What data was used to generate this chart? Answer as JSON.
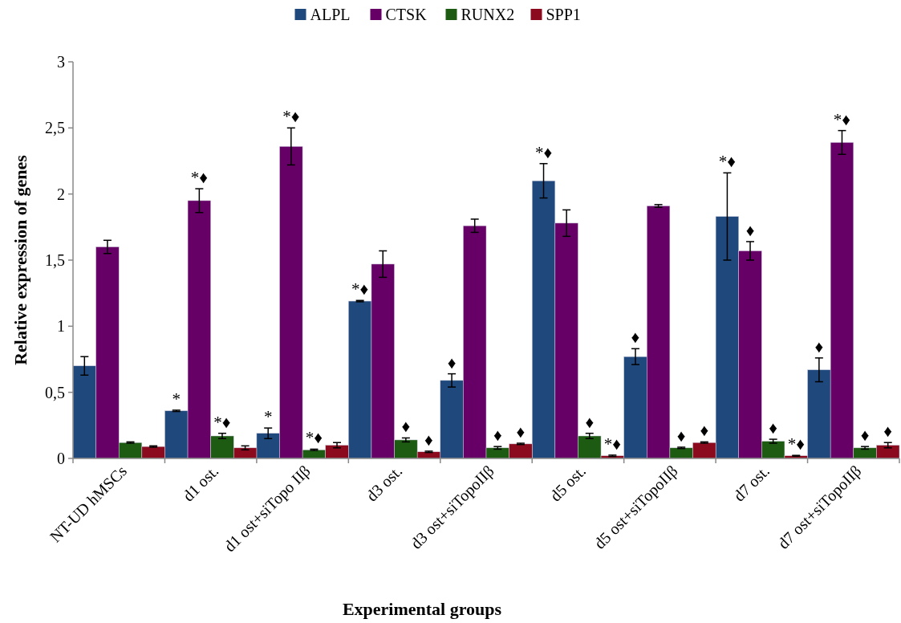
{
  "chart_data": {
    "type": "bar",
    "xlabel": "Experimental groups",
    "ylabel": "Relative expression of genes",
    "categories": [
      "NT-UD hMSCs",
      "d1 ost.",
      "d1 ost+siTopo IIβ",
      "d3 ost.",
      "d3 ost+siTopoIIβ",
      "d5 ost.",
      "d5 ost+siTopoIIβ",
      "d7 ost.",
      "d7 ost+siTopoIIβ"
    ],
    "series": [
      {
        "name": "ALPL",
        "color": "#1f497d",
        "values": [
          0.7,
          0.36,
          0.19,
          1.19,
          0.59,
          2.1,
          0.77,
          1.83,
          0.67
        ],
        "errors": [
          0.07,
          0.005,
          0.04,
          0.005,
          0.05,
          0.13,
          0.06,
          0.33,
          0.09
        ],
        "value_labels": [
          null,
          "*",
          "*",
          "*♦",
          "♦",
          "*♦",
          "♦",
          "*♦",
          "♦"
        ]
      },
      {
        "name": "CTSK",
        "color": "#660066",
        "values": [
          1.6,
          1.95,
          2.36,
          1.47,
          1.76,
          1.78,
          1.91,
          1.57,
          2.39
        ],
        "errors": [
          0.05,
          0.09,
          0.14,
          0.1,
          0.05,
          0.1,
          0.01,
          0.07,
          0.09
        ],
        "value_labels": [
          null,
          "*♦",
          "*♦",
          null,
          null,
          null,
          null,
          "♦",
          "*♦"
        ]
      },
      {
        "name": "RUNX2",
        "color": "#1e5b12",
        "values": [
          0.12,
          0.17,
          0.065,
          0.14,
          0.08,
          0.17,
          0.08,
          0.13,
          0.08
        ],
        "errors": [
          0.005,
          0.02,
          0.005,
          0.015,
          0.01,
          0.02,
          0.005,
          0.015,
          0.01
        ],
        "value_labels": [
          null,
          "*♦",
          "*♦",
          "♦",
          "♦",
          "♦",
          "♦",
          "♦",
          "♦"
        ]
      },
      {
        "name": "SPP1",
        "color": "#8b0a1e",
        "values": [
          0.09,
          0.08,
          0.1,
          0.05,
          0.11,
          0.02,
          0.12,
          0.02,
          0.1
        ],
        "errors": [
          0.005,
          0.015,
          0.02,
          0.005,
          0.005,
          0.005,
          0.005,
          0.003,
          0.02
        ],
        "value_labels": [
          null,
          null,
          null,
          "♦",
          "♦",
          "*♦",
          "♦",
          "*♦",
          "♦"
        ]
      }
    ],
    "ylim": [
      0,
      3
    ],
    "yticks": [
      0,
      {
        "value": 0.5,
        "label": "0,5"
      },
      1,
      {
        "value": 1.5,
        "label": "1,5"
      },
      2,
      {
        "value": 2.5,
        "label": "2,5"
      },
      3
    ],
    "grid": false,
    "legend": "top"
  }
}
